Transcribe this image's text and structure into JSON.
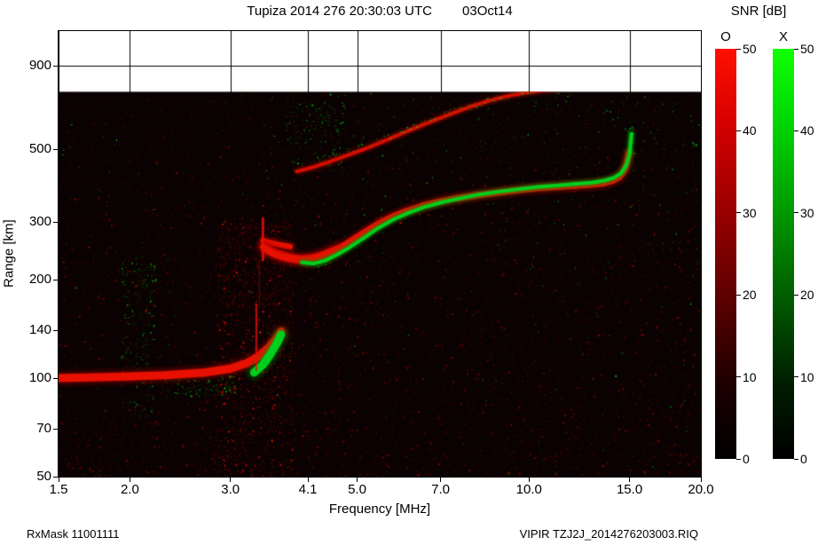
{
  "header": {
    "title": "Tupiza 2014 276 20:30:03 UTC",
    "date": "03Oct14"
  },
  "footer": {
    "rx_mask": "RxMask 11001111",
    "file": "VIPIR  TZJ2J_2014276203003.RIQ"
  },
  "chart_data": {
    "type": "heatmap",
    "subtype": "ionogram",
    "title": "Tupiza 2014 276 20:30:03 UTC 03Oct14",
    "xlabel": "Frequency [MHz]",
    "ylabel": "Range [km]",
    "x_scale": "log",
    "y_scale": "log",
    "xlim": [
      1.5,
      20
    ],
    "ylim": [
      50,
      1150
    ],
    "x_ticks": [
      1.5,
      2.0,
      3.0,
      4.1,
      5.0,
      7.0,
      10.0,
      15.0,
      20.0
    ],
    "x_tick_labels": [
      "1.5",
      "2.0",
      "3.0",
      "4.1",
      "5.0",
      "7.0",
      "10.0",
      "15.0",
      "20.0"
    ],
    "y_ticks": [
      900,
      500,
      300,
      200,
      140,
      100,
      70,
      50
    ],
    "y_tick_labels": [
      "900",
      "500",
      "300",
      "200",
      "140",
      "100",
      "70",
      "50"
    ],
    "data_ceiling_km": 750,
    "colors": {
      "plot_bg": "#0a0202",
      "o_mode": "#e81000",
      "x_mode": "#00cf1d",
      "grid": "#000000"
    },
    "colorbar": {
      "title": "SNR [dB]",
      "min": 0,
      "max": 50,
      "ticks": [
        50,
        40,
        30,
        20,
        10,
        0
      ],
      "tick_labels": [
        "50",
        "40",
        "30",
        "20",
        "10",
        "0"
      ],
      "o_label": "O",
      "x_label": "X",
      "o_color": "#ff0000",
      "x_color": "#00dd00"
    },
    "noise": {
      "red_speckle": 15000,
      "green_speckle": 550
    },
    "traces": [
      {
        "name": "E-layer",
        "mode": "O",
        "width": 9,
        "points": [
          [
            1.5,
            100
          ],
          [
            1.9,
            101
          ],
          [
            2.3,
            102
          ],
          [
            2.7,
            104
          ],
          [
            3.0,
            107
          ],
          [
            3.2,
            111
          ],
          [
            3.35,
            116
          ],
          [
            3.5,
            124
          ],
          [
            3.6,
            131
          ],
          [
            3.68,
            139
          ]
        ]
      },
      {
        "name": "E-layer-X",
        "mode": "X",
        "width": 9,
        "points": [
          [
            3.3,
            104
          ],
          [
            3.42,
            110
          ],
          [
            3.52,
            118
          ],
          [
            3.62,
            128
          ],
          [
            3.68,
            136
          ]
        ]
      },
      {
        "name": "F-ledge",
        "mode": "O",
        "width": 6,
        "points": [
          [
            3.42,
            263
          ],
          [
            3.6,
            257
          ],
          [
            3.82,
            252
          ]
        ]
      },
      {
        "name": "F-layer-inner",
        "mode": "O",
        "width": 10,
        "points": [
          [
            3.45,
            249
          ],
          [
            3.6,
            240
          ],
          [
            3.8,
            233
          ],
          [
            4.0,
            230
          ],
          [
            4.2,
            232
          ],
          [
            4.4,
            238
          ],
          [
            4.6,
            246
          ]
        ]
      },
      {
        "name": "F-layer",
        "mode": "O",
        "width": 7,
        "points": [
          [
            3.42,
            252
          ],
          [
            3.55,
            241
          ],
          [
            3.7,
            235
          ],
          [
            3.9,
            231
          ],
          [
            4.1,
            231
          ],
          [
            4.3,
            236
          ],
          [
            4.55,
            245
          ],
          [
            4.8,
            258
          ],
          [
            5.1,
            276
          ],
          [
            5.4,
            294
          ],
          [
            5.75,
            311
          ],
          [
            6.1,
            324
          ],
          [
            6.5,
            336
          ],
          [
            7.0,
            347
          ],
          [
            7.5,
            355
          ],
          [
            8.1,
            362
          ],
          [
            8.8,
            369
          ],
          [
            9.6,
            376
          ],
          [
            10.4,
            381
          ],
          [
            11.2,
            384
          ],
          [
            12.0,
            387
          ],
          [
            12.8,
            390
          ],
          [
            13.5,
            394
          ],
          [
            14.0,
            401
          ],
          [
            14.4,
            412
          ],
          [
            14.7,
            432
          ],
          [
            14.85,
            455
          ],
          [
            14.95,
            487
          ]
        ]
      },
      {
        "name": "F-layer-X",
        "mode": "X",
        "width": 4,
        "points": [
          [
            4.0,
            226
          ],
          [
            4.2,
            224
          ],
          [
            4.4,
            229
          ],
          [
            4.6,
            238
          ],
          [
            4.85,
            251
          ],
          [
            5.15,
            269
          ],
          [
            5.45,
            288
          ],
          [
            5.8,
            306
          ],
          [
            6.15,
            320
          ],
          [
            6.55,
            333
          ],
          [
            7.05,
            345
          ],
          [
            7.55,
            354
          ],
          [
            8.1,
            363
          ],
          [
            8.8,
            371
          ],
          [
            9.6,
            378
          ],
          [
            10.4,
            384
          ],
          [
            11.2,
            388
          ],
          [
            12.0,
            392
          ],
          [
            12.9,
            396
          ],
          [
            13.6,
            402
          ],
          [
            14.1,
            410
          ],
          [
            14.5,
            423
          ],
          [
            14.8,
            447
          ],
          [
            15.0,
            482
          ],
          [
            15.07,
            525
          ],
          [
            15.12,
            558
          ]
        ]
      },
      {
        "name": "second-hop",
        "mode": "O",
        "width": 4,
        "alpha": 0.85,
        "points": [
          [
            3.92,
            428
          ],
          [
            4.2,
            442
          ],
          [
            4.5,
            460
          ],
          [
            4.85,
            482
          ],
          [
            5.2,
            505
          ],
          [
            5.6,
            532
          ],
          [
            6.0,
            560
          ],
          [
            6.45,
            590
          ],
          [
            6.9,
            618
          ],
          [
            7.4,
            648
          ],
          [
            7.9,
            676
          ],
          [
            8.5,
            704
          ],
          [
            9.1,
            726
          ],
          [
            9.8,
            744
          ],
          [
            10.5,
            757
          ],
          [
            11.3,
            766
          ]
        ]
      },
      {
        "name": "second-hop-X",
        "mode": "X",
        "width": 3,
        "style": "speckle",
        "points": [
          [
            4.25,
            465
          ],
          [
            4.6,
            484
          ],
          [
            5.0,
            508
          ],
          [
            5.4,
            534
          ],
          [
            5.85,
            562
          ],
          [
            6.3,
            590
          ],
          [
            6.8,
            620
          ],
          [
            7.3,
            650
          ],
          [
            7.9,
            680
          ],
          [
            8.5,
            706
          ],
          [
            9.2,
            730
          ],
          [
            9.9,
            750
          ],
          [
            10.7,
            762
          ]
        ]
      }
    ],
    "features": {
      "verticals": [
        {
          "f": 3.42,
          "km": [
            230,
            308
          ],
          "width": 3,
          "mode": "O",
          "alpha": 0.85
        },
        {
          "f": 3.33,
          "km": [
            106,
            168
          ],
          "width": 2,
          "mode": "O",
          "alpha": 0.8
        },
        {
          "f": 3.37,
          "km": [
            165,
            228
          ],
          "width": 1,
          "mode": "O",
          "alpha": 0.4
        }
      ],
      "clusters": [
        {
          "f": [
            1.93,
            2.22
          ],
          "km": [
            72,
            225
          ],
          "mode": "X",
          "count": 260
        },
        {
          "f": [
            2.3,
            3.05
          ],
          "km": [
            88,
            102
          ],
          "mode": "X",
          "count": 140
        },
        {
          "f": [
            3.75,
            4.75
          ],
          "km": [
            430,
            700
          ],
          "mode": "X",
          "count": 200
        },
        {
          "f": [
            14.85,
            15.2
          ],
          "km": [
            470,
            590
          ],
          "mode": "X",
          "count": 90
        },
        {
          "f": [
            4.0,
            4.45
          ],
          "km": [
            220,
            238
          ],
          "mode": "X",
          "count": 120
        },
        {
          "f": [
            2.85,
            3.85
          ],
          "km": [
            52,
            300
          ],
          "mode": "O",
          "count": 1500
        },
        {
          "f": [
            1.5,
            19.9
          ],
          "km": [
            50,
            745
          ],
          "mode": "X",
          "count": 550
        }
      ]
    }
  }
}
